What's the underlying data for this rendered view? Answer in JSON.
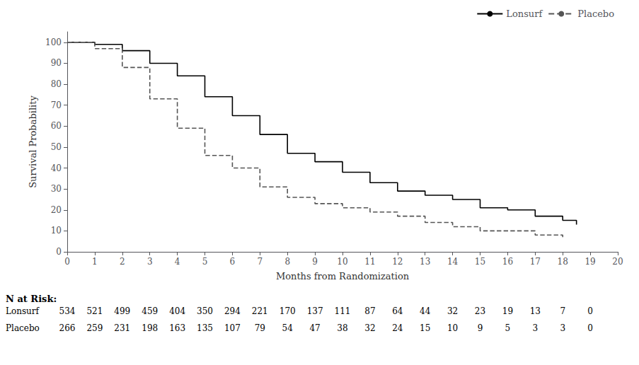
{
  "chart_data": {
    "type": "line",
    "step": true,
    "xlabel": "Months from Randomization",
    "ylabel": "Survival Probability",
    "xlim": [
      0,
      20
    ],
    "ylim": [
      0,
      105
    ],
    "xticks": [
      0,
      1,
      2,
      3,
      4,
      5,
      6,
      7,
      8,
      9,
      10,
      11,
      12,
      13,
      14,
      15,
      16,
      17,
      18,
      19,
      20
    ],
    "yticks": [
      0,
      10,
      20,
      30,
      40,
      50,
      60,
      70,
      80,
      90,
      100
    ],
    "grid": false,
    "legend": "upper right",
    "series": [
      {
        "name": "Lonsurf",
        "color": "#000000",
        "line_style": "solid",
        "x": [
          0,
          1,
          2,
          3,
          4,
          5,
          6,
          7,
          8,
          9,
          10,
          11,
          12,
          13,
          14,
          15,
          16,
          17,
          18,
          18.5
        ],
        "values": [
          100,
          99,
          96,
          90,
          84,
          74,
          65,
          56,
          47,
          43,
          38,
          33,
          29,
          27,
          25,
          21,
          20,
          17,
          15,
          13
        ]
      },
      {
        "name": "Placebo",
        "color": "#555555",
        "line_style": "dashed",
        "x": [
          0,
          1,
          2,
          3,
          4,
          5,
          6,
          7,
          8,
          9,
          10,
          11,
          12,
          13,
          14,
          15,
          16,
          17,
          18
        ],
        "values": [
          100,
          97,
          88,
          73,
          59,
          46,
          40,
          31,
          26,
          23,
          21,
          19,
          17,
          14,
          12,
          10,
          10,
          8,
          7
        ]
      }
    ],
    "risk_table": {
      "title": "N at Risk:",
      "x": [
        0,
        1,
        2,
        3,
        4,
        5,
        6,
        7,
        8,
        9,
        10,
        11,
        12,
        13,
        14,
        15,
        16,
        17,
        18,
        19
      ],
      "rows": [
        {
          "name": "Lonsurf",
          "values": [
            534,
            521,
            499,
            459,
            404,
            350,
            294,
            221,
            170,
            137,
            111,
            87,
            64,
            44,
            32,
            23,
            19,
            13,
            7,
            0
          ]
        },
        {
          "name": "Placebo",
          "values": [
            266,
            259,
            231,
            198,
            163,
            135,
            107,
            79,
            54,
            47,
            38,
            32,
            24,
            15,
            10,
            9,
            5,
            3,
            3,
            0
          ]
        }
      ]
    }
  }
}
